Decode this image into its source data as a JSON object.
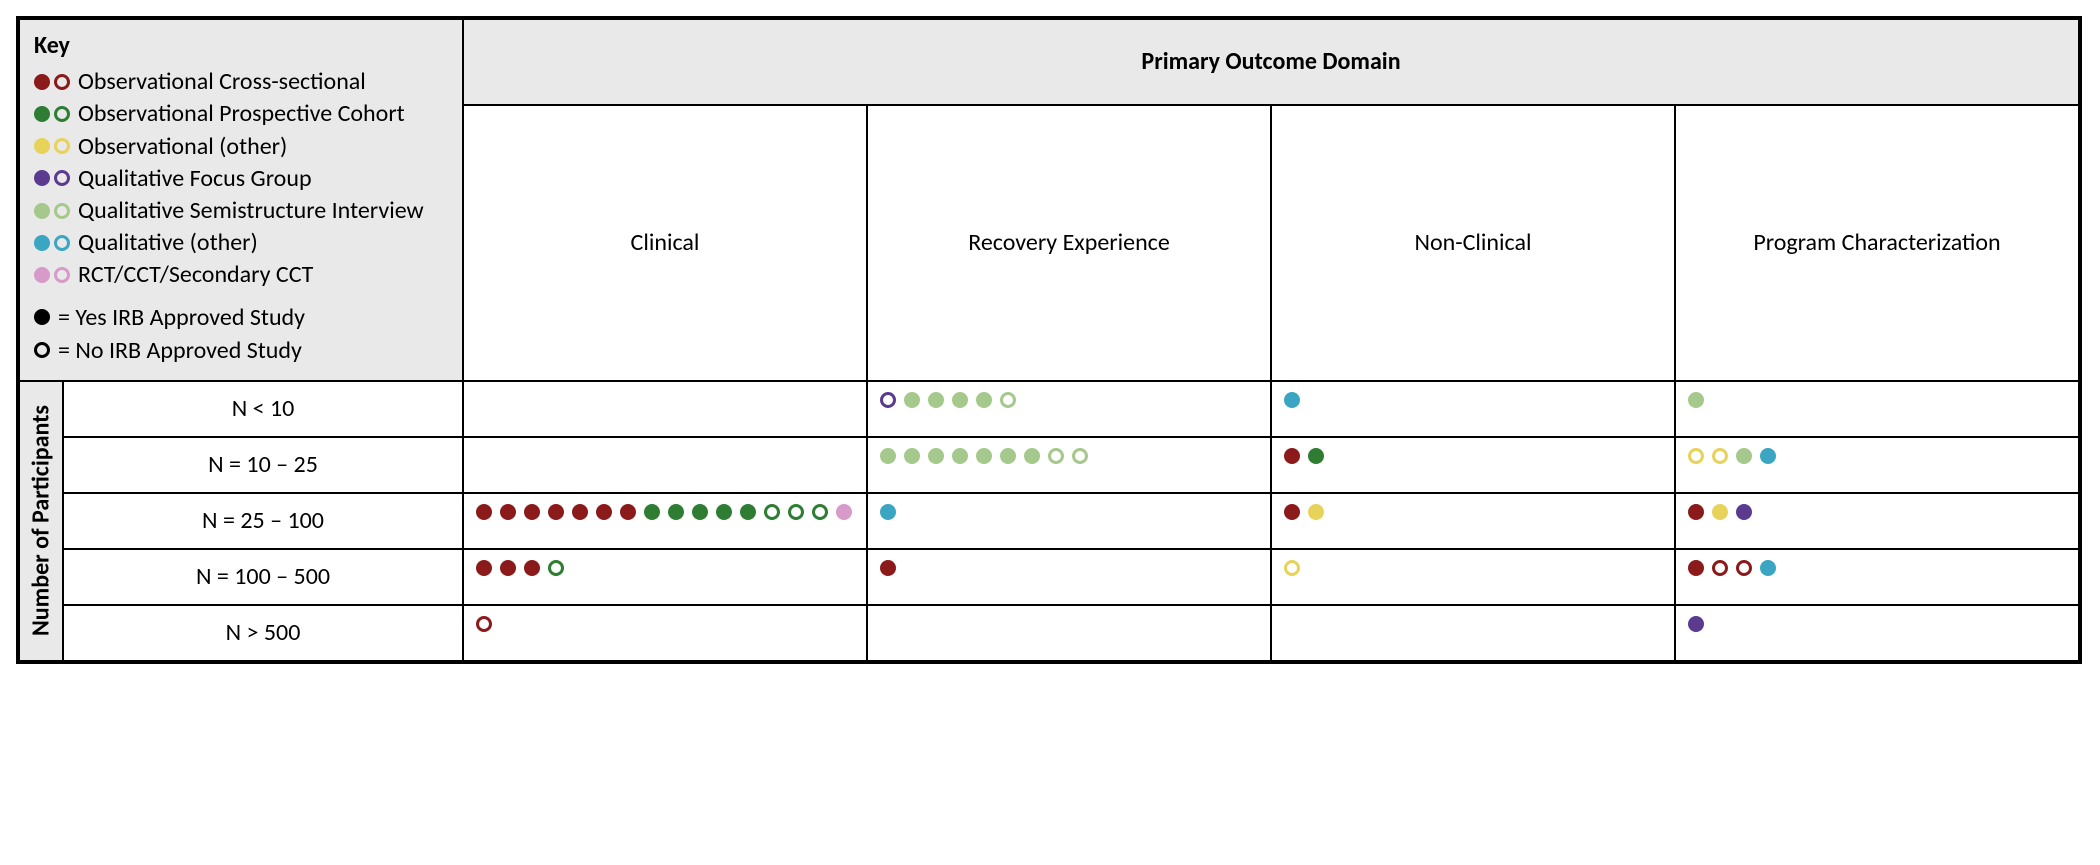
{
  "colors": {
    "obs_cross_sectional": "#8b1a1a",
    "obs_prospective_cohort": "#2e7d32",
    "obs_other": "#e8d35a",
    "qual_focus_group": "#5a3b8f",
    "qual_semi_interview": "#a5c98c",
    "qual_other": "#3aa6c2",
    "rct_cct": "#d89ac9",
    "black": "#000000",
    "header_bg": "#e9e9e9",
    "border": "#000000"
  },
  "key": {
    "title": "Key",
    "items": [
      {
        "label": "Observational Cross-sectional",
        "color_key": "obs_cross_sectional"
      },
      {
        "label": "Observational Prospective Cohort",
        "color_key": "obs_prospective_cohort"
      },
      {
        "label": "Observational (other)",
        "color_key": "obs_other"
      },
      {
        "label": "Qualitative Focus Group",
        "color_key": "qual_focus_group"
      },
      {
        "label": "Qualitative Semistructure Interview",
        "color_key": "qual_semi_interview"
      },
      {
        "label": "Qualitative (other)",
        "color_key": "qual_other"
      },
      {
        "label": "RCT/CCT/Secondary CCT",
        "color_key": "rct_cct"
      }
    ],
    "notes": {
      "filled": "= Yes IRB Approved Study",
      "open": "= No IRB Approved Study"
    }
  },
  "header": {
    "domain_title": "Primary Outcome Domain",
    "columns": [
      "Clinical",
      "Recovery Experience",
      "Non-Clinical",
      "Program Characterization"
    ]
  },
  "y_axis": "Number of Participants",
  "rows": [
    {
      "label": "N < 10",
      "cells": [
        [],
        [
          {
            "c": "qual_focus_group",
            "f": false
          },
          {
            "c": "qual_semi_interview",
            "f": true
          },
          {
            "c": "qual_semi_interview",
            "f": true
          },
          {
            "c": "qual_semi_interview",
            "f": true
          },
          {
            "c": "qual_semi_interview",
            "f": true
          },
          {
            "c": "qual_semi_interview",
            "f": false
          }
        ],
        [
          {
            "c": "qual_other",
            "f": true
          }
        ],
        [
          {
            "c": "qual_semi_interview",
            "f": true
          }
        ]
      ]
    },
    {
      "label": "N = 10 – 25",
      "cells": [
        [],
        [
          {
            "c": "qual_semi_interview",
            "f": true
          },
          {
            "c": "qual_semi_interview",
            "f": true
          },
          {
            "c": "qual_semi_interview",
            "f": true
          },
          {
            "c": "qual_semi_interview",
            "f": true
          },
          {
            "c": "qual_semi_interview",
            "f": true
          },
          {
            "c": "qual_semi_interview",
            "f": true
          },
          {
            "c": "qual_semi_interview",
            "f": true
          },
          {
            "c": "qual_semi_interview",
            "f": false
          },
          {
            "c": "qual_semi_interview",
            "f": false
          }
        ],
        [
          {
            "c": "obs_cross_sectional",
            "f": true
          },
          {
            "c": "obs_prospective_cohort",
            "f": true
          }
        ],
        [
          {
            "c": "obs_other",
            "f": false
          },
          {
            "c": "obs_other",
            "f": false
          },
          {
            "c": "qual_semi_interview",
            "f": true
          },
          {
            "c": "qual_other",
            "f": true
          }
        ]
      ]
    },
    {
      "label": "N = 25 – 100",
      "cells": [
        [
          {
            "c": "obs_cross_sectional",
            "f": true
          },
          {
            "c": "obs_cross_sectional",
            "f": true
          },
          {
            "c": "obs_cross_sectional",
            "f": true
          },
          {
            "c": "obs_cross_sectional",
            "f": true
          },
          {
            "c": "obs_cross_sectional",
            "f": true
          },
          {
            "c": "obs_cross_sectional",
            "f": true
          },
          {
            "c": "obs_cross_sectional",
            "f": true
          },
          {
            "c": "obs_prospective_cohort",
            "f": true
          },
          {
            "c": "obs_prospective_cohort",
            "f": true
          },
          {
            "c": "obs_prospective_cohort",
            "f": true
          },
          {
            "c": "obs_prospective_cohort",
            "f": true
          },
          {
            "c": "obs_prospective_cohort",
            "f": true
          },
          {
            "c": "obs_prospective_cohort",
            "f": false
          },
          {
            "c": "obs_prospective_cohort",
            "f": false
          },
          {
            "c": "obs_prospective_cohort",
            "f": false
          },
          {
            "c": "rct_cct",
            "f": true
          }
        ],
        [
          {
            "c": "qual_other",
            "f": true
          }
        ],
        [
          {
            "c": "obs_cross_sectional",
            "f": true
          },
          {
            "c": "obs_other",
            "f": true
          }
        ],
        [
          {
            "c": "obs_cross_sectional",
            "f": true
          },
          {
            "c": "obs_other",
            "f": true
          },
          {
            "c": "qual_focus_group",
            "f": true
          }
        ]
      ]
    },
    {
      "label": "N = 100 – 500",
      "cells": [
        [
          {
            "c": "obs_cross_sectional",
            "f": true
          },
          {
            "c": "obs_cross_sectional",
            "f": true
          },
          {
            "c": "obs_cross_sectional",
            "f": true
          },
          {
            "c": "obs_prospective_cohort",
            "f": false
          }
        ],
        [
          {
            "c": "obs_cross_sectional",
            "f": true
          }
        ],
        [
          {
            "c": "obs_other",
            "f": false
          }
        ],
        [
          {
            "c": "obs_cross_sectional",
            "f": true
          },
          {
            "c": "obs_cross_sectional",
            "f": false
          },
          {
            "c": "obs_cross_sectional",
            "f": false
          },
          {
            "c": "qual_other",
            "f": true
          }
        ]
      ]
    },
    {
      "label": "N > 500",
      "cells": [
        [
          {
            "c": "obs_cross_sectional",
            "f": false
          }
        ],
        [],
        [],
        [
          {
            "c": "qual_focus_group",
            "f": true
          }
        ]
      ]
    }
  ]
}
